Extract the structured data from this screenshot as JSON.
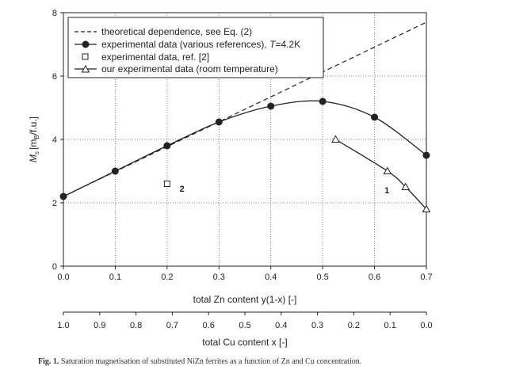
{
  "chart_data": {
    "type": "line",
    "xlabel": "total Zn content y(1-x) [-]",
    "ylabel": "M",
    "ylabel_sub": "s",
    "ylabel_unit": "[m",
    "ylabel_unit_sub": "B",
    "ylabel_unit_rest": "/f.u.]",
    "x_ticks": [
      "0.0",
      "0.1",
      "0.2",
      "0.3",
      "0.4",
      "0.5",
      "0.6",
      "0.7"
    ],
    "y_ticks": [
      "0",
      "2",
      "4",
      "6",
      "8"
    ],
    "xlim": [
      0,
      0.7
    ],
    "ylim": [
      0,
      8
    ],
    "grid": true,
    "legend_position": "top-left",
    "secondary_x": {
      "label": "total Cu content x [-]",
      "ticks": [
        "1.0",
        "0.9",
        "0.8",
        "0.7",
        "0.6",
        "0.5",
        "0.4",
        "0.3",
        "0.2",
        "0.1",
        "0.0"
      ]
    },
    "series": [
      {
        "name": "theoretical dependence, see Eq. (2)",
        "style": "dashed",
        "x": [
          0,
          0.7
        ],
        "y": [
          2.2,
          7.7
        ]
      },
      {
        "name": "experimental data (various references), T=4.2K",
        "style": "filled-circle",
        "x": [
          0,
          0.1,
          0.2,
          0.3,
          0.4,
          0.5,
          0.6,
          0.7
        ],
        "y": [
          2.2,
          3.0,
          3.8,
          4.55,
          5.05,
          5.2,
          4.7,
          3.5
        ]
      },
      {
        "name": "experimental data, ref. [2]",
        "style": "open-square",
        "x": [
          0.2
        ],
        "y": [
          2.6
        ]
      },
      {
        "name": "our experimental data (room temperature)",
        "style": "open-triangle",
        "x": [
          0.525,
          0.625,
          0.66,
          0.7
        ],
        "y": [
          4.0,
          3.0,
          2.5,
          1.8
        ]
      }
    ],
    "annotations": [
      {
        "text": "2",
        "x": 0.215,
        "y": 2.45
      },
      {
        "text": "1",
        "x": 0.61,
        "y": 2.4
      }
    ]
  },
  "legend": {
    "items": [
      {
        "text": "theoretical dependence, see Eq. (2)"
      },
      {
        "text": "experimental data (various references), ",
        "italic": "T",
        "rest": "=4.2K"
      },
      {
        "text": "experimental data, ref. [2]"
      },
      {
        "text": "our experimental data (room temperature)"
      }
    ]
  },
  "caption": {
    "label": "Fig. 1.",
    "text": "Saturation magnetisation of substituted NiZn ferrites as a function of Zn and Cu concentration."
  }
}
